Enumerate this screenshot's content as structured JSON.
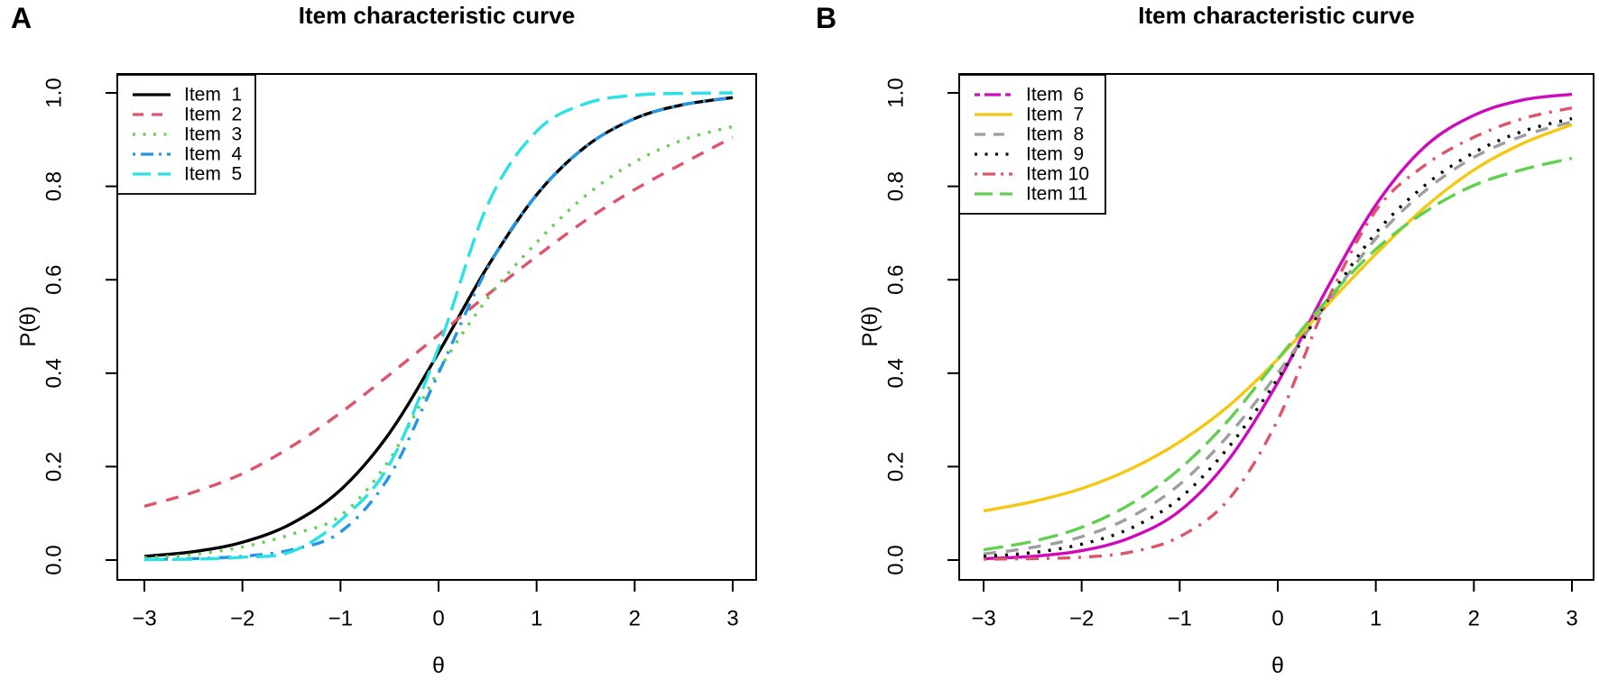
{
  "figure": {
    "background": "#FFFFFF",
    "foreground": "#000000"
  },
  "panels": [
    {
      "label": "A",
      "title": "Item characteristic curve",
      "xlabel": "θ",
      "ylabel": "P(θ)"
    },
    {
      "label": "B",
      "title": "Item characteristic curve",
      "xlabel": "θ",
      "ylabel": "P(θ)"
    }
  ],
  "chart_data": [
    {
      "panel": "A",
      "type": "line",
      "title": "Item characteristic curve",
      "xlabel": "θ",
      "ylabel": "P(θ)",
      "xlim": [
        -3,
        3
      ],
      "ylim": [
        0,
        1
      ],
      "grid": false,
      "legend_position": "topleft",
      "xticks": [
        -3,
        -2,
        -1,
        0,
        1,
        2,
        3
      ],
      "xtick_labels": [
        "−3",
        "−2",
        "−1",
        "0",
        "1",
        "2",
        "3"
      ],
      "yticks": [
        0.0,
        0.2,
        0.4,
        0.6,
        0.8,
        1.0
      ],
      "ytick_labels": [
        "0.0",
        "0.2",
        "0.4",
        "0.6",
        "0.8",
        "1.0"
      ],
      "x": [
        -3,
        -2.5,
        -2,
        -1.5,
        -1,
        -0.5,
        0,
        0.5,
        1,
        1.5,
        2,
        2.5,
        3
      ],
      "series": [
        {
          "name": "Item  1",
          "color": "#000000",
          "linetype": "solid",
          "values": [
            0.008,
            0.018,
            0.038,
            0.078,
            0.15,
            0.272,
            0.444,
            0.628,
            0.782,
            0.885,
            0.945,
            0.975,
            0.99
          ]
        },
        {
          "name": "Item  2",
          "color": "#DF536B",
          "linetype": "dashed",
          "values": [
            0.115,
            0.145,
            0.185,
            0.243,
            0.315,
            0.397,
            0.482,
            0.568,
            0.65,
            0.727,
            0.793,
            0.85,
            0.905
          ]
        },
        {
          "name": "Item  3",
          "color": "#61D04F",
          "linetype": "dotted",
          "values": [
            0.005,
            0.012,
            0.028,
            0.055,
            0.095,
            0.215,
            0.405,
            0.56,
            0.68,
            0.78,
            0.852,
            0.9,
            0.928
          ]
        },
        {
          "name": "Item  4",
          "color": "#2297E6",
          "linetype": "dotdash",
          "values": [
            0.001,
            0.003,
            0.008,
            0.022,
            0.06,
            0.18,
            0.4,
            0.625,
            0.782,
            0.885,
            0.945,
            0.975,
            0.99
          ]
        },
        {
          "name": "Item  5",
          "color": "#28E2E5",
          "linetype": "longdash",
          "values": [
            0.001,
            0.002,
            0.006,
            0.018,
            0.085,
            0.205,
            0.455,
            0.76,
            0.918,
            0.977,
            0.995,
            0.999,
            1.0
          ]
        }
      ]
    },
    {
      "panel": "B",
      "type": "line",
      "title": "Item characteristic curve",
      "xlabel": "θ",
      "ylabel": "P(θ)",
      "xlim": [
        -3,
        3
      ],
      "ylim": [
        0,
        1
      ],
      "grid": false,
      "legend_position": "topleft",
      "xticks": [
        -3,
        -2,
        -1,
        0,
        1,
        2,
        3
      ],
      "xtick_labels": [
        "−3",
        "−2",
        "−1",
        "0",
        "1",
        "2",
        "3"
      ],
      "yticks": [
        0.0,
        0.2,
        0.4,
        0.6,
        0.8,
        1.0
      ],
      "ytick_labels": [
        "0.0",
        "0.2",
        "0.4",
        "0.6",
        "0.8",
        "1.0"
      ],
      "x": [
        -3,
        -2.5,
        -2,
        -1.5,
        -1,
        -0.5,
        0,
        0.5,
        1,
        1.5,
        2,
        2.5,
        3
      ],
      "series": [
        {
          "name": "Item  6",
          "color": "#CD0BBC",
          "linetype": "twodash",
          "curve_render": "solid",
          "values": [
            0.003,
            0.008,
            0.02,
            0.048,
            0.105,
            0.215,
            0.38,
            0.58,
            0.76,
            0.885,
            0.952,
            0.985,
            0.997
          ]
        },
        {
          "name": "Item  7",
          "color": "#F5C710",
          "linetype": "solid",
          "values": [
            0.105,
            0.125,
            0.153,
            0.195,
            0.253,
            0.33,
            0.43,
            0.545,
            0.655,
            0.755,
            0.835,
            0.892,
            0.932
          ]
        },
        {
          "name": "Item  8",
          "color": "#9E9E9E",
          "linetype": "dashed",
          "values": [
            0.013,
            0.027,
            0.05,
            0.092,
            0.162,
            0.268,
            0.4,
            0.548,
            0.688,
            0.79,
            0.862,
            0.908,
            0.938
          ]
        },
        {
          "name": "Item  9",
          "color": "#000000",
          "linetype": "dotted",
          "values": [
            0.008,
            0.016,
            0.034,
            0.068,
            0.132,
            0.242,
            0.388,
            0.553,
            0.7,
            0.802,
            0.872,
            0.918,
            0.945
          ]
        },
        {
          "name": "Item 10",
          "color": "#DF536B",
          "linetype": "dotdash",
          "values": [
            0.002,
            0.003,
            0.006,
            0.017,
            0.05,
            0.13,
            0.3,
            0.552,
            0.748,
            0.845,
            0.905,
            0.945,
            0.968
          ]
        },
        {
          "name": "Item 11",
          "color": "#61D04F",
          "linetype": "longdash",
          "values": [
            0.022,
            0.04,
            0.07,
            0.12,
            0.195,
            0.3,
            0.43,
            0.556,
            0.665,
            0.745,
            0.802,
            0.836,
            0.86
          ]
        }
      ]
    }
  ]
}
